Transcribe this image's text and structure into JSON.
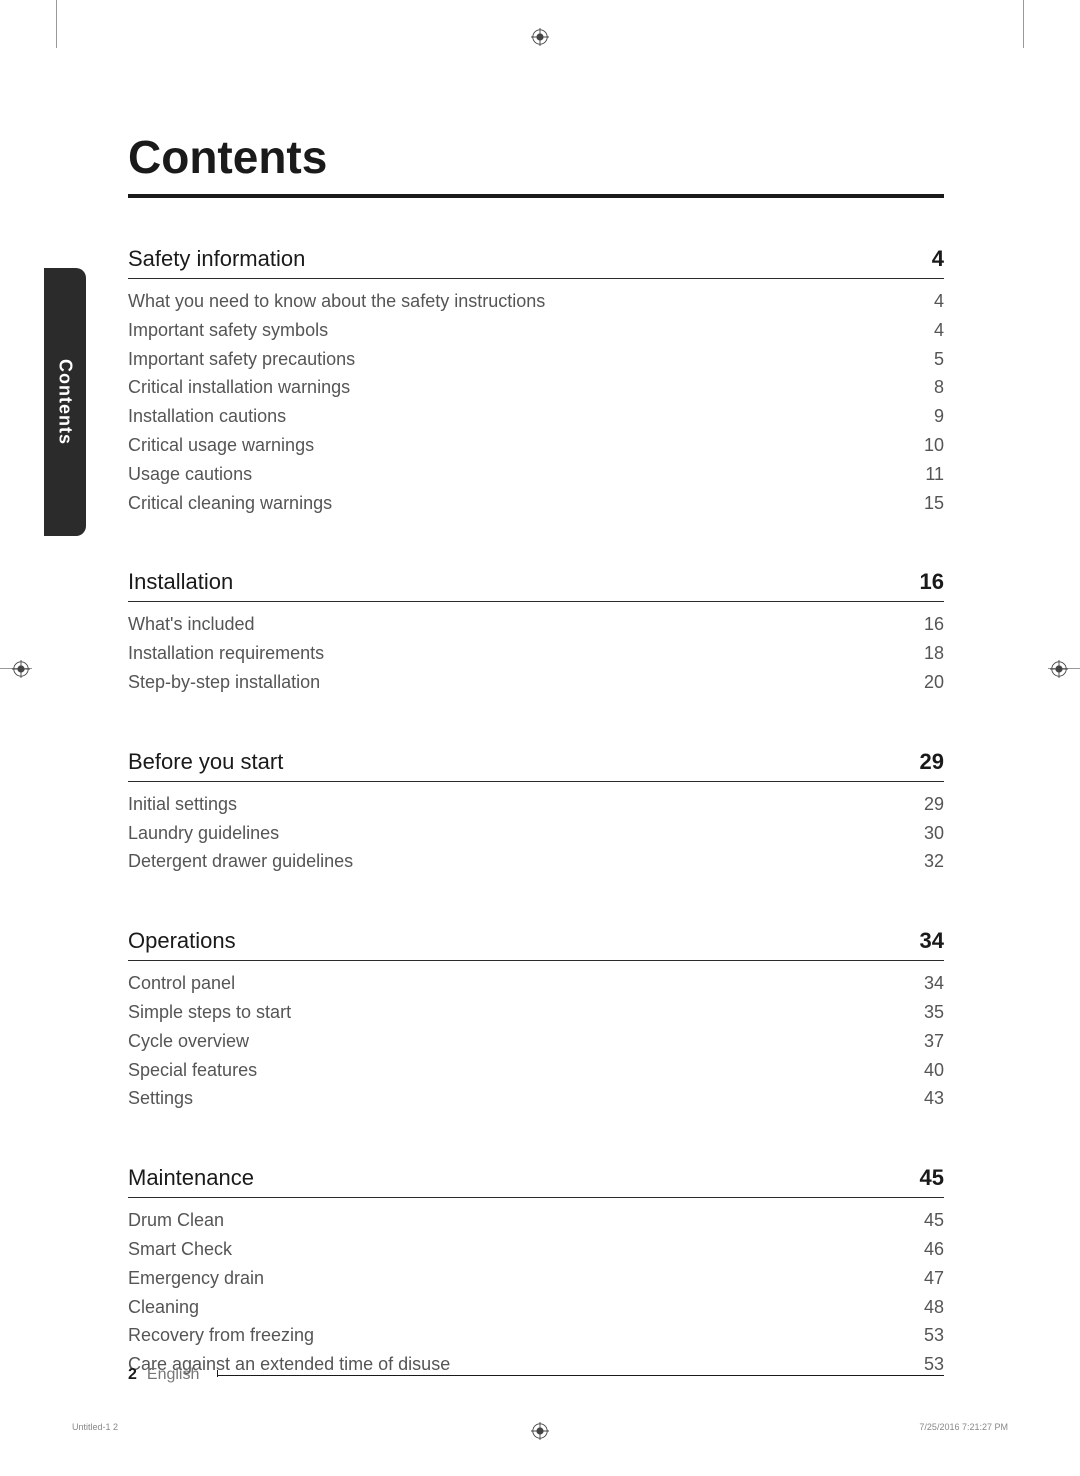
{
  "title": "Contents",
  "tab_label": "Contents",
  "sections": [
    {
      "title": "Safety information",
      "page": "4",
      "entries": [
        {
          "title": "What you need to know about the safety instructions",
          "page": "4"
        },
        {
          "title": "Important safety symbols",
          "page": "4"
        },
        {
          "title": "Important safety precautions",
          "page": "5"
        },
        {
          "title": "Critical installation warnings",
          "page": "8"
        },
        {
          "title": "Installation cautions",
          "page": "9"
        },
        {
          "title": "Critical usage warnings",
          "page": "10"
        },
        {
          "title": "Usage cautions",
          "page": "11"
        },
        {
          "title": "Critical cleaning warnings",
          "page": "15"
        }
      ]
    },
    {
      "title": "Installation",
      "page": "16",
      "entries": [
        {
          "title": "What's included",
          "page": "16"
        },
        {
          "title": "Installation requirements",
          "page": "18"
        },
        {
          "title": "Step-by-step installation",
          "page": "20"
        }
      ]
    },
    {
      "title": "Before you start",
      "page": "29",
      "entries": [
        {
          "title": "Initial settings",
          "page": "29"
        },
        {
          "title": "Laundry guidelines",
          "page": "30"
        },
        {
          "title": "Detergent drawer guidelines",
          "page": "32"
        }
      ]
    },
    {
      "title": "Operations",
      "page": "34",
      "entries": [
        {
          "title": "Control panel",
          "page": "34"
        },
        {
          "title": "Simple steps to start",
          "page": "35"
        },
        {
          "title": "Cycle overview",
          "page": "37"
        },
        {
          "title": "Special features",
          "page": "40"
        },
        {
          "title": "Settings",
          "page": "43"
        }
      ]
    },
    {
      "title": "Maintenance",
      "page": "45",
      "entries": [
        {
          "title": "Drum Clean",
          "page": "45"
        },
        {
          "title": "Smart Check",
          "page": "46"
        },
        {
          "title": "Emergency drain",
          "page": "47"
        },
        {
          "title": "Cleaning",
          "page": "48"
        },
        {
          "title": "Recovery from freezing",
          "page": "53"
        },
        {
          "title": "Care against an extended time of disuse",
          "page": "53"
        }
      ]
    }
  ],
  "footer": {
    "page_number": "2",
    "language": "English"
  },
  "imprint": {
    "left": "Untitled-1   2",
    "right": "7/25/2016   7:21:27 PM"
  }
}
